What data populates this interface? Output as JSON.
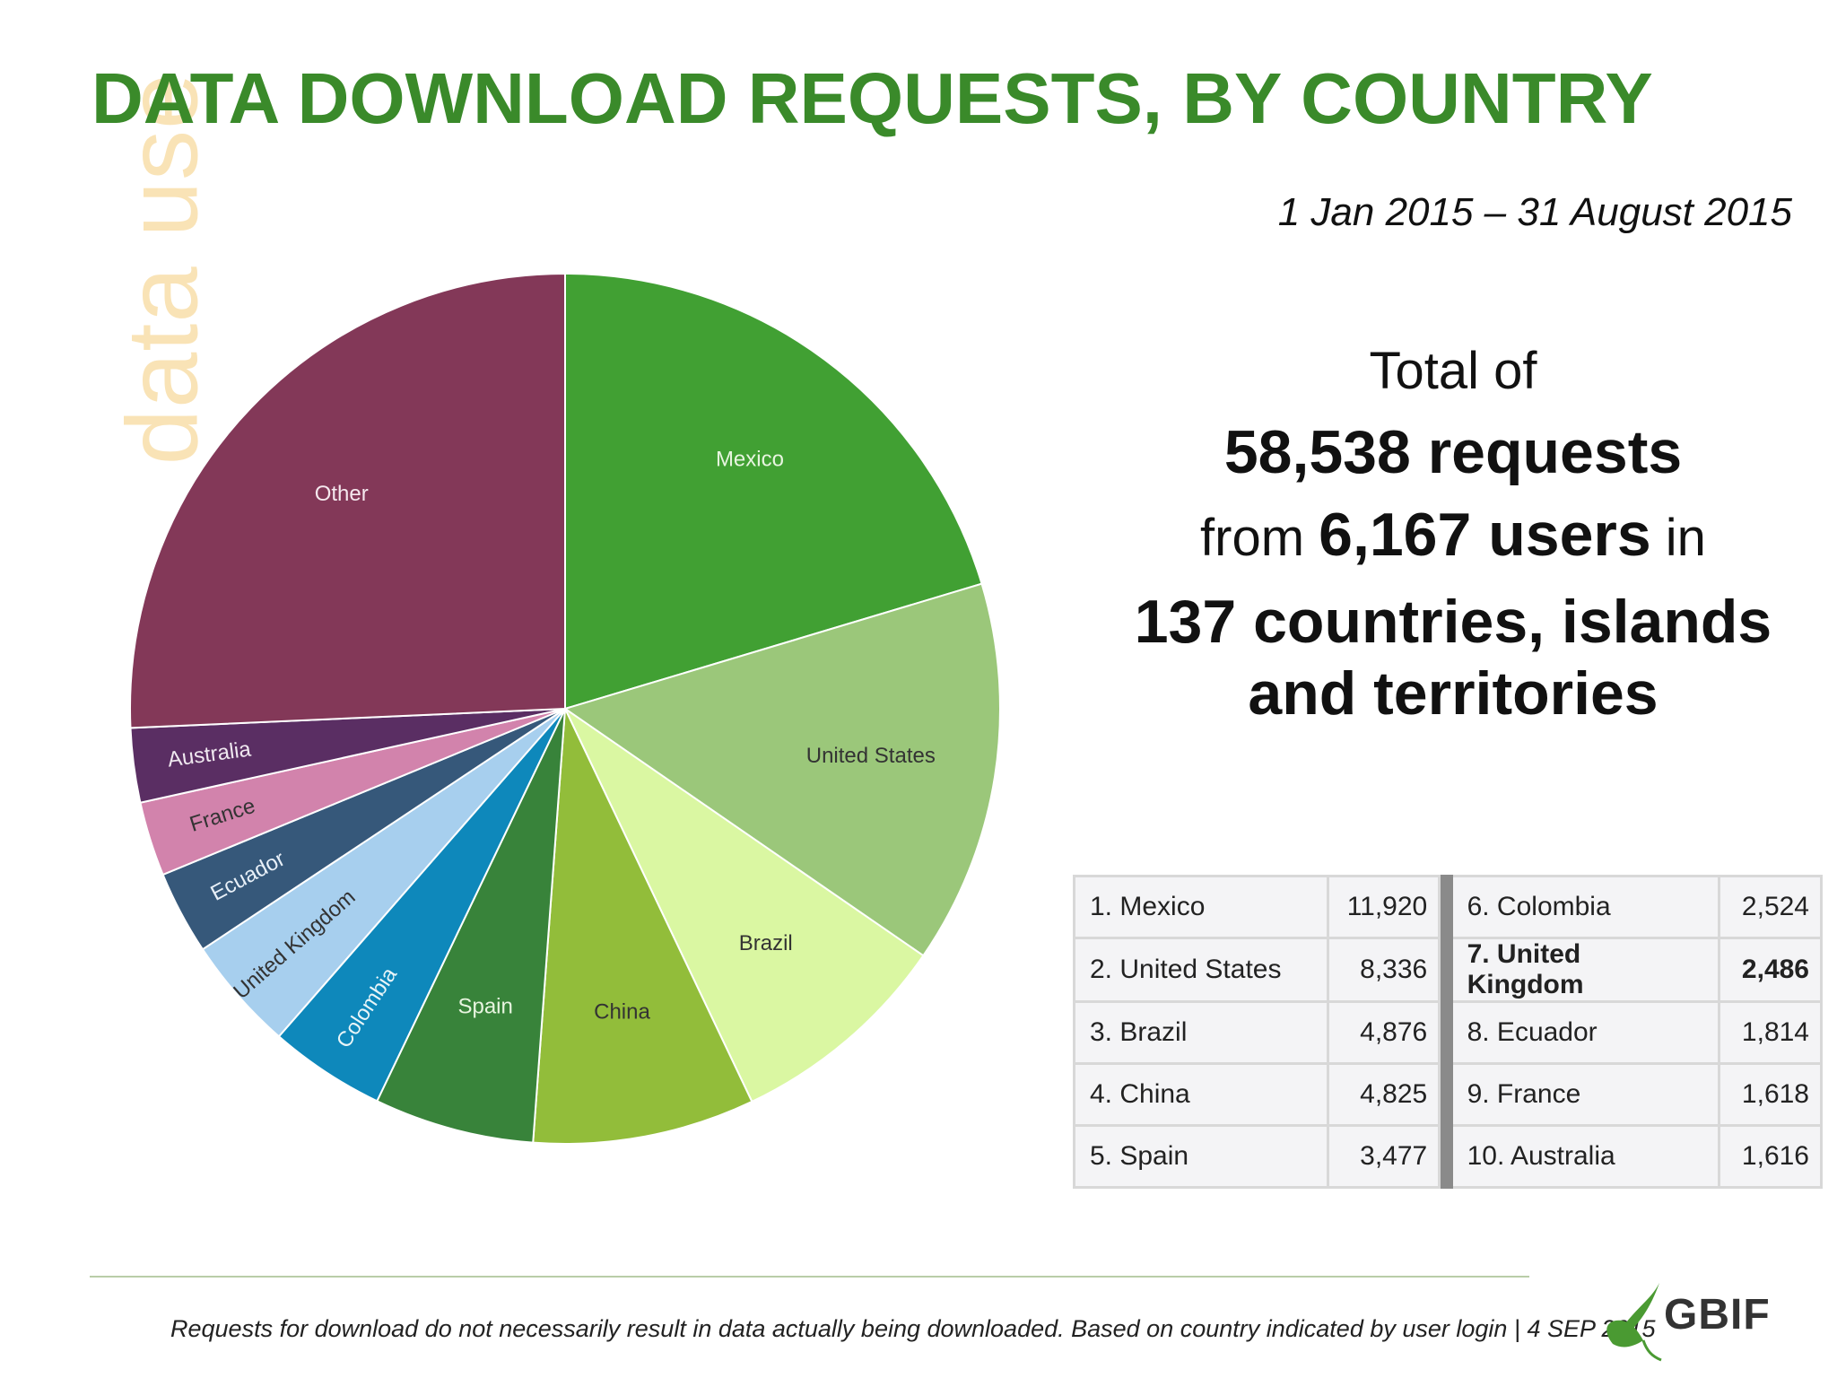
{
  "side_label": "data use",
  "title": "DATA DOWNLOAD REQUESTS, BY COUNTRY",
  "date_range": "1 Jan 2015 – 31 August 2015",
  "summary": {
    "line1": "Total of",
    "line2": "58,538 requests",
    "line3_prefix": "from",
    "line3_bold": "6,167 users",
    "line3_suffix": "in",
    "line4a": "137 countries, islands",
    "line4b": "and territories"
  },
  "chart_data": {
    "type": "pie",
    "labels": [
      "Mexico",
      "United States",
      "Brazil",
      "China",
      "Spain",
      "Colombia",
      "United Kingdom",
      "Ecuador",
      "France",
      "Australia",
      "Other"
    ],
    "values": [
      11920,
      8336,
      4876,
      4825,
      3477,
      2524,
      2486,
      1814,
      1618,
      1616,
      15046
    ],
    "colors": [
      "#41a033",
      "#9bc77a",
      "#daf7a2",
      "#92bd3a",
      "#38833a",
      "#0e88bb",
      "#a7cfee",
      "#36587a",
      "#d283ac",
      "#5a2e63",
      "#833858"
    ],
    "label_colors": [
      "#e8f5e0",
      "#333333",
      "#333333",
      "#333333",
      "#e8f5e0",
      "#e8f5f8",
      "#333333",
      "#e8f0f8",
      "#333333",
      "#f0e8f0",
      "#f5e8ee"
    ]
  },
  "table": {
    "left": [
      {
        "label": "1. Mexico",
        "value": "11,920"
      },
      {
        "label": "2. United States",
        "value": "8,336"
      },
      {
        "label": "3. Brazil",
        "value": "4,876"
      },
      {
        "label": "4. China",
        "value": "4,825"
      },
      {
        "label": "5. Spain",
        "value": "3,477"
      }
    ],
    "right": [
      {
        "label": "6. Colombia",
        "value": "2,524"
      },
      {
        "label": "7. United Kingdom",
        "value": "2,486"
      },
      {
        "label": "8. Ecuador",
        "value": "1,814"
      },
      {
        "label": "9. France",
        "value": "1,618"
      },
      {
        "label": "10. Australia",
        "value": "1,616"
      }
    ]
  },
  "footnote": "Requests for download do not necessarily result in data actually being downloaded. Based on country indicated by user login | 4 SEP 2015",
  "logo": {
    "text": "GBIF",
    "icon": "leaf-icon",
    "leaf_color": "#4a9a32"
  }
}
